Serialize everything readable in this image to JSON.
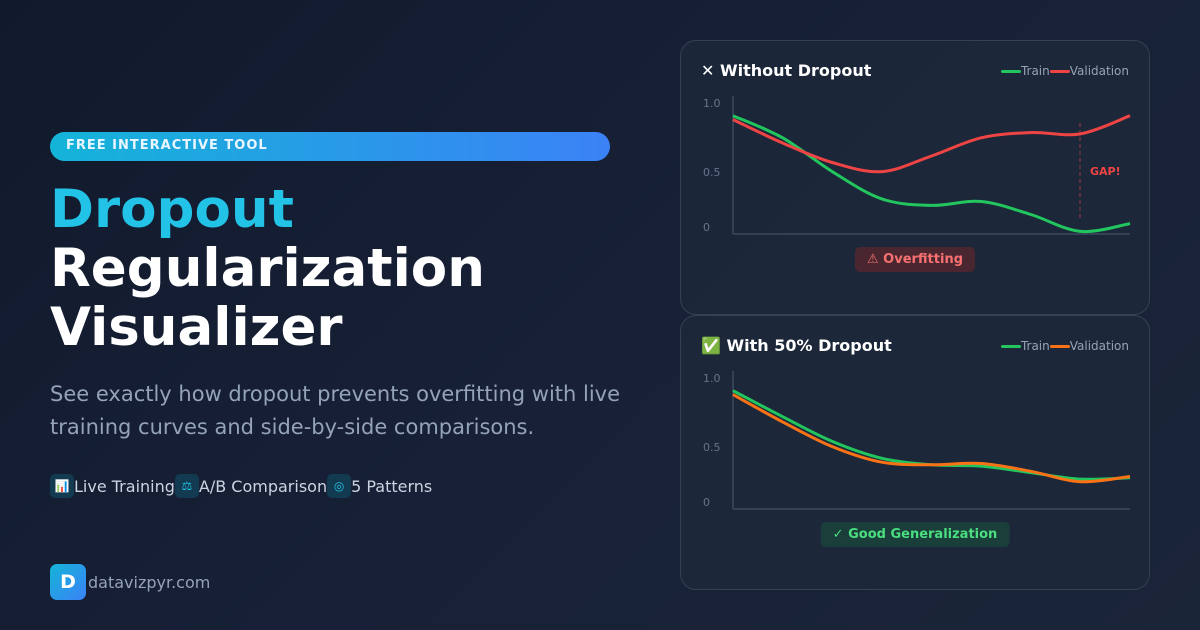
{
  "badge": "FREE INTERACTIVE TOOL",
  "title": {
    "line1": "Dropout",
    "line2": "Regularization",
    "line3": "Visualizer"
  },
  "subtitle": "See exactly how dropout prevents overfitting with live training curves and side-by-side comparisons.",
  "features": [
    {
      "icon": "bar-chart-icon",
      "glyph": "📊",
      "label": "Live Training"
    },
    {
      "icon": "scales-icon",
      "glyph": "⚖",
      "label": "A/B Comparison"
    },
    {
      "icon": "target-icon",
      "glyph": "◎",
      "label": "5 Patterns"
    }
  ],
  "brand": {
    "logo_letter": "D",
    "domain": "datavizpyr.com"
  },
  "colors": {
    "accent": "#22c3e6",
    "train": "#22c55e",
    "val_overfit": "#ef4444",
    "val_dropout": "#f97316"
  },
  "chart_data": [
    {
      "type": "line",
      "title": "✕ Without Dropout",
      "yticks": [
        "1.0",
        "0.5",
        "0"
      ],
      "ylim": [
        0,
        1
      ],
      "legend": "top-right",
      "series": [
        {
          "name": "Train",
          "color": "#22c55e",
          "values": [
            0.91,
            0.74,
            0.48,
            0.27,
            0.22,
            0.25,
            0.15,
            0.02,
            0.08
          ]
        },
        {
          "name": "Validation",
          "color": "#ef4444",
          "values": [
            0.88,
            0.7,
            0.55,
            0.48,
            0.6,
            0.74,
            0.78,
            0.77,
            0.91
          ]
        }
      ],
      "annotation": "GAP!",
      "status": "⚠ Overfitting",
      "status_color": "#f87171",
      "status_bg": "#4a2730"
    },
    {
      "type": "line",
      "title": "✅ With 50% Dropout",
      "yticks": [
        "1.0",
        "0.5",
        "0"
      ],
      "ylim": [
        0,
        1
      ],
      "legend": "top-right",
      "series": [
        {
          "name": "Train",
          "color": "#22c55e",
          "values": [
            0.91,
            0.71,
            0.52,
            0.39,
            0.34,
            0.33,
            0.28,
            0.23,
            0.24
          ]
        },
        {
          "name": "Validation",
          "color": "#f97316",
          "values": [
            0.88,
            0.67,
            0.48,
            0.36,
            0.34,
            0.35,
            0.29,
            0.21,
            0.25
          ]
        }
      ],
      "status": "✓ Good Generalization",
      "status_color": "#4ade80",
      "status_bg": "#1a3e3a"
    }
  ]
}
